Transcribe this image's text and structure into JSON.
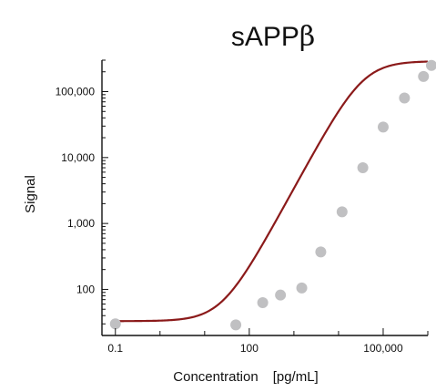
{
  "chart_data": {
    "type": "scatter",
    "title": "sAPP",
    "title_symbol": "β",
    "xlabel": "Concentration",
    "xlabel_unit": "[pg/mL]",
    "ylabel": "Signal",
    "x_scale": "log",
    "y_scale": "log",
    "xlim": [
      0.05,
      1000000
    ],
    "ylim": [
      20,
      300000
    ],
    "x_ticks": [
      {
        "value": 0.1,
        "label": "0.1"
      },
      {
        "value": 100,
        "label": "100"
      },
      {
        "value": 100000,
        "label": "100,000"
      }
    ],
    "y_ticks": [
      {
        "value": 100,
        "label": "100"
      },
      {
        "value": 1000,
        "label": "1,000"
      },
      {
        "value": 10000,
        "label": "10,000"
      },
      {
        "value": 100000,
        "label": "100,000"
      }
    ],
    "grid": false,
    "legend": "none",
    "series": [
      {
        "kind": "points",
        "color": "#c0c0c2",
        "points": [
          {
            "x": 0.1,
            "y": 30
          },
          {
            "x": 50,
            "y": 29
          },
          {
            "x": 200,
            "y": 63
          },
          {
            "x": 500,
            "y": 82
          },
          {
            "x": 1500,
            "y": 105
          },
          {
            "x": 4000,
            "y": 370
          },
          {
            "x": 12000,
            "y": 1500
          },
          {
            "x": 35000,
            "y": 7000
          },
          {
            "x": 100000,
            "y": 29000
          },
          {
            "x": 300000,
            "y": 80000
          },
          {
            "x": 800000,
            "y": 170000
          },
          {
            "x": 1500000,
            "y": 250000
          }
        ]
      },
      {
        "kind": "fit-curve",
        "color": "#8b1a1a",
        "model": "4PL",
        "params": {
          "bottom": 33,
          "top": 290000,
          "ec50": 35000,
          "hill": 1.25
        }
      }
    ]
  }
}
